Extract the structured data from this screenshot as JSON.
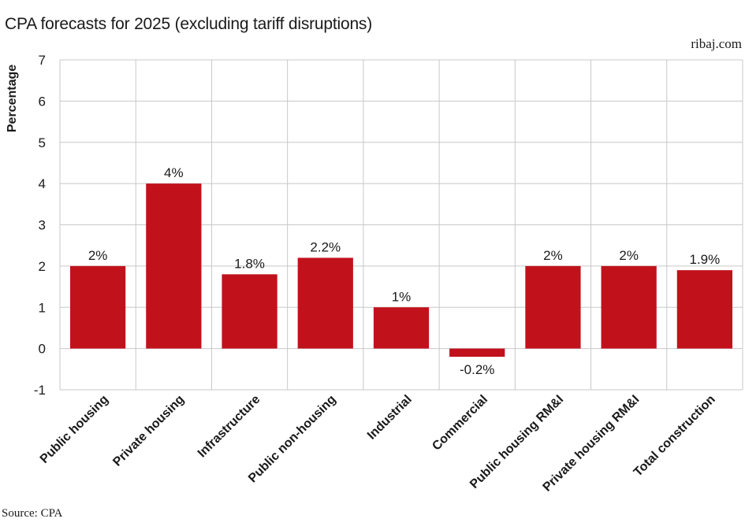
{
  "header": {
    "title": "CPA forecasts for 2025 (excluding tariff disruptions)",
    "brand": "ribaj.com"
  },
  "footer": {
    "source": "Source: CPA"
  },
  "colors": {
    "bar": "#c1121c",
    "grid": "#c8c8c8"
  },
  "chart_data": {
    "type": "bar",
    "title": "CPA forecasts for 2025 (excluding tariff disruptions)",
    "xlabel": "",
    "ylabel": "Percentage",
    "ylim": [
      -1,
      7
    ],
    "yticks": [
      -1,
      0,
      1,
      2,
      3,
      4,
      5,
      6,
      7
    ],
    "grid": true,
    "categories": [
      "Public housing",
      "Private housing",
      "Infrastructure",
      "Public non-housing",
      "Industrial",
      "Commercial",
      "Public housing RM&I",
      "Private housing RM&I",
      "Total construction"
    ],
    "values": [
      2,
      4,
      1.8,
      2.2,
      1,
      -0.2,
      2,
      2,
      1.9
    ],
    "labels": [
      "2%",
      "4%",
      "1.8%",
      "2.2%",
      "1%",
      "-0.2%",
      "2%",
      "2%",
      "1.9%"
    ]
  }
}
